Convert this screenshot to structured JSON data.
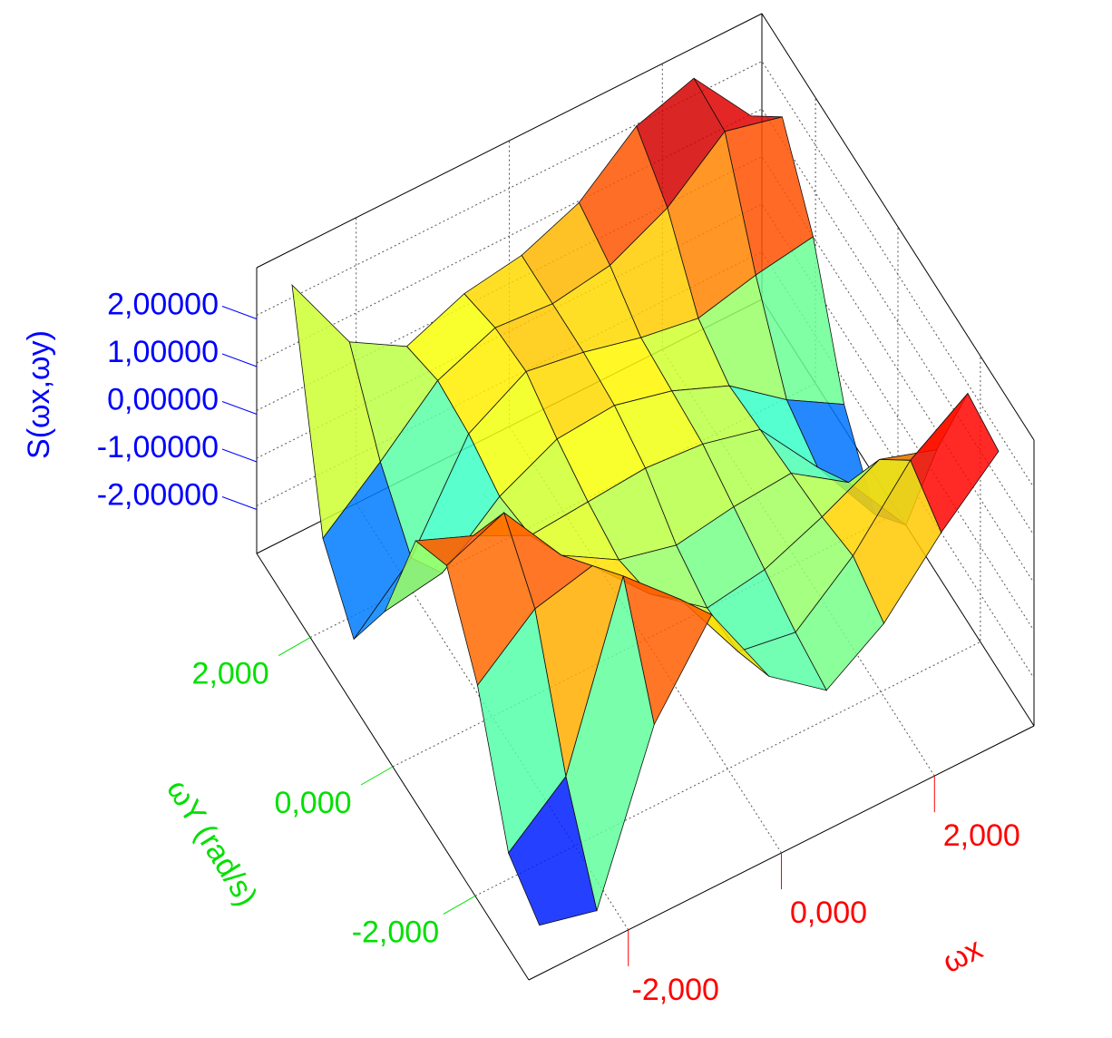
{
  "chart_data": {
    "type": "surface",
    "xlabel": "ωx",
    "ylabel": "ωY (rad/s)",
    "zlabel": "S(ωx,ωy)",
    "xlim": [
      -3.3,
      3.3
    ],
    "ylim": [
      -3.3,
      3.3
    ],
    "zlim": [
      -3,
      3
    ],
    "xticks": [
      {
        "value": -2,
        "label": "-2,000"
      },
      {
        "value": 0,
        "label": "0,000"
      },
      {
        "value": 2,
        "label": "2,000"
      }
    ],
    "yticks": [
      {
        "value": -2,
        "label": "-2,000"
      },
      {
        "value": 0,
        "label": "0,000"
      },
      {
        "value": 2,
        "label": "2,000"
      }
    ],
    "zticks": [
      {
        "value": -2,
        "label": "-2,00000"
      },
      {
        "value": -1,
        "label": "-1,00000"
      },
      {
        "value": 0,
        "label": "0,00000"
      },
      {
        "value": 1,
        "label": "1,00000"
      },
      {
        "value": 2,
        "label": "2,00000"
      }
    ],
    "xlabel_color": "#ff0000",
    "ylabel_color": "#00e000",
    "zlabel_color": "#0000ff",
    "grid": true,
    "x": [
      -3,
      -2.25,
      -1.5,
      -0.75,
      0,
      0.75,
      1.5,
      2.25,
      3
    ],
    "y": [
      -3,
      -2.25,
      -1.5,
      -0.75,
      0,
      0.75,
      1.5,
      2.25,
      3
    ],
    "z": [
      [
        -2.5,
        -2.8,
        0.5,
        2.2,
        0.3,
        -0.6,
        0.2,
        1.5,
        2.6
      ],
      [
        -2.0,
        -1.0,
        2.6,
        1.5,
        -0.2,
        -0.4,
        0.6,
        2.0,
        2.8
      ],
      [
        0.5,
        1.5,
        1.8,
        0.6,
        -0.3,
        -0.1,
        0.4,
        1.0,
        0.6
      ],
      [
        2.0,
        2.5,
        1.0,
        0.3,
        0.0,
        0.2,
        0.3,
        -0.5,
        -2.0
      ],
      [
        1.5,
        1.0,
        0.4,
        0.5,
        0.6,
        0.5,
        0.2,
        -1.2,
        -2.8
      ],
      [
        -1.0,
        -0.8,
        0.2,
        0.8,
        0.9,
        0.6,
        0.1,
        -0.8,
        -1.5
      ],
      [
        -2.6,
        -1.5,
        0.5,
        1.2,
        1.0,
        0.7,
        0.5,
        0.8,
        1.0
      ],
      [
        -1.5,
        -0.5,
        0.6,
        1.1,
        1.0,
        1.2,
        1.8,
        2.8,
        2.5
      ],
      [
        2.8,
        1.0,
        0.3,
        0.8,
        1.0,
        1.5,
        2.5,
        2.9,
        1.5
      ]
    ]
  }
}
